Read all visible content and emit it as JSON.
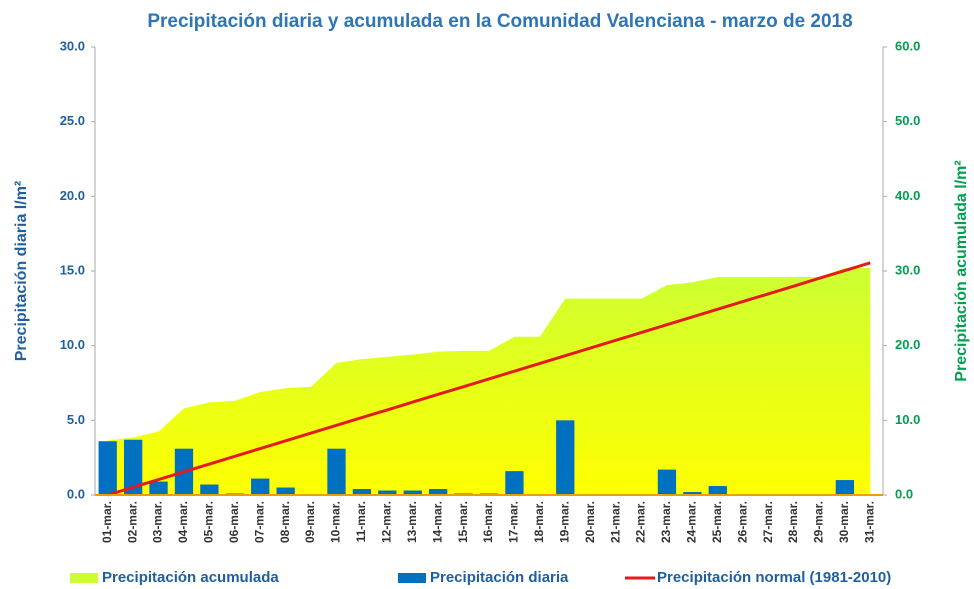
{
  "chart_data": {
    "type": "combo",
    "title": "Precipitación diaria y acumulada en la Comunidad Valenciana - marzo de 2018",
    "ylabel": "Precipitación diaria l/m²",
    "y2label": "Precipitación acumulada l/m²",
    "categories": [
      "01-mar.",
      "02-mar.",
      "03-mar.",
      "04-mar.",
      "05-mar.",
      "06-mar.",
      "07-mar.",
      "08-mar.",
      "09-mar.",
      "10-mar.",
      "11-mar.",
      "12-mar.",
      "13-mar.",
      "14-mar.",
      "15-mar.",
      "16-mar.",
      "17-mar.",
      "18-mar.",
      "19-mar.",
      "20-mar.",
      "21-mar.",
      "22-mar.",
      "23-mar.",
      "24-mar.",
      "25-mar.",
      "26-mar.",
      "27-mar.",
      "28-mar.",
      "29-mar.",
      "30-mar.",
      "31-mar."
    ],
    "ylim": [
      0,
      30
    ],
    "yticks": [
      {
        "value": 0,
        "label": "0.0"
      },
      {
        "value": 5,
        "label": "5.0"
      },
      {
        "value": 10,
        "label": "10.0"
      },
      {
        "value": 15,
        "label": "15.0"
      },
      {
        "value": 20,
        "label": "20.0"
      },
      {
        "value": 25,
        "label": "25.0"
      },
      {
        "value": 30,
        "label": "30.0"
      }
    ],
    "y2lim": [
      0,
      60
    ],
    "y2ticks": [
      {
        "value": 0,
        "label": "0.0"
      },
      {
        "value": 10,
        "label": "10.0"
      },
      {
        "value": 20,
        "label": "20.0"
      },
      {
        "value": 30,
        "label": "30.0"
      },
      {
        "value": 40,
        "label": "40.0"
      },
      {
        "value": 50,
        "label": "50.0"
      },
      {
        "value": 60,
        "label": "60.0"
      }
    ],
    "series": [
      {
        "name": "Precipitación acumulada",
        "type": "area",
        "axis": "y2",
        "color": "#ccff33",
        "values": [
          7.3,
          7.7,
          8.5,
          11.6,
          12.4,
          12.6,
          13.8,
          14.3,
          14.5,
          17.7,
          18.2,
          18.5,
          18.8,
          19.2,
          19.3,
          19.3,
          21.2,
          21.2,
          26.3,
          26.3,
          26.3,
          26.3,
          28.1,
          28.5,
          29.2,
          29.2,
          29.2,
          29.2,
          29.2,
          30.4,
          30.4
        ]
      },
      {
        "name": "Precipitación diaria",
        "type": "bar",
        "color": "#0070c0",
        "values": [
          3.6,
          3.7,
          0.9,
          3.1,
          0.7,
          0.1,
          1.1,
          0.5,
          0.0,
          3.1,
          0.4,
          0.3,
          0.3,
          0.4,
          0.1,
          0.1,
          1.6,
          0.0,
          5.0,
          0.0,
          0.0,
          0.0,
          1.7,
          0.2,
          0.6,
          0.0,
          0.0,
          0.0,
          0.0,
          1.0,
          0.0
        ]
      },
      {
        "name": "Precipitación normal (1981-2010)",
        "type": "line",
        "axis": "y2",
        "color": "#e41a1c",
        "values": [
          0,
          1.04,
          2.07,
          3.11,
          4.15,
          5.18,
          6.22,
          7.26,
          8.29,
          9.33,
          10.37,
          11.4,
          12.44,
          13.48,
          14.51,
          15.55,
          16.59,
          17.62,
          18.66,
          19.7,
          20.73,
          21.77,
          22.81,
          23.84,
          24.88,
          25.92,
          26.95,
          27.99,
          29.03,
          30.06,
          31.1
        ]
      }
    ]
  }
}
